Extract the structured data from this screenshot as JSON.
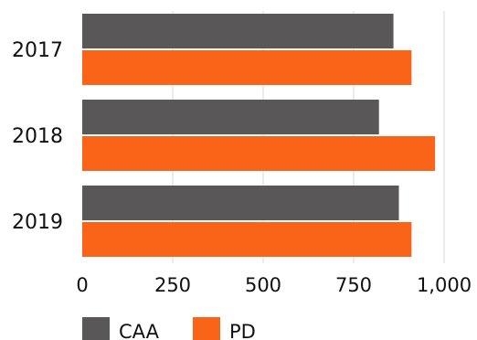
{
  "chart_data": {
    "type": "bar",
    "orientation": "horizontal",
    "categories": [
      "2017",
      "2018",
      "2019"
    ],
    "series": [
      {
        "name": "CAA",
        "values": [
          860,
          820,
          875
        ],
        "color": "#595758"
      },
      {
        "name": "PD",
        "values": [
          910,
          975,
          910
        ],
        "color": "#f96419"
      }
    ],
    "xlim": [
      0,
      1000
    ],
    "xticks": [
      0,
      250,
      500,
      750,
      1000
    ],
    "xtick_labels": [
      "0",
      "250",
      "500",
      "750",
      "1,000"
    ],
    "grid": "vertical",
    "legend_position": "bottom-left"
  }
}
